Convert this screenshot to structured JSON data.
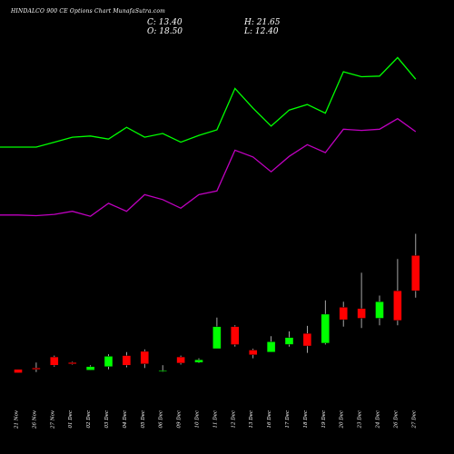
{
  "header": {
    "title": "HINDALCO 900 CE Options  Chart MunafaSutra.com",
    "close_label": "C: 13.40",
    "open_label": "O: 18.50",
    "high_label": "H: 21.65",
    "low_label": "L: 12.40"
  },
  "colors": {
    "background": "#000000",
    "up": "#00ff00",
    "down": "#ff0000",
    "upper_line": "#00ff00",
    "lower_line": "#c000c0",
    "text": "#ffffff"
  },
  "chart_data": {
    "type": "candlestick",
    "categories": [
      "21 Nov",
      "26 Nov",
      "27 Nov",
      "01 Dec",
      "02 Dec",
      "03 Dec",
      "04 Dec",
      "05 Dec",
      "06 Dec",
      "09 Dec",
      "10 Dec",
      "11 Dec",
      "12 Dec",
      "13 Dec",
      "16 Dec",
      "17 Dec",
      "18 Dec",
      "19 Dec",
      "20 Dec",
      "23 Dec",
      "24 Dec",
      "26 Dec",
      "27 Dec"
    ],
    "candles": [
      {
        "o": 2.0,
        "h": 2.0,
        "c": 1.5,
        "l": 1.5
      },
      {
        "o": 2.2,
        "h": 3.0,
        "c": 2.0,
        "l": 1.6
      },
      {
        "o": 3.8,
        "h": 4.0,
        "c": 2.6,
        "l": 2.4
      },
      {
        "o": 3.0,
        "h": 3.1,
        "c": 2.8,
        "l": 2.7
      },
      {
        "o": 1.9,
        "h": 2.6,
        "c": 2.4,
        "l": 1.9
      },
      {
        "o": 2.4,
        "h": 4.2,
        "c": 3.9,
        "l": 2.0
      },
      {
        "o": 4.0,
        "h": 4.5,
        "c": 2.6,
        "l": 2.3
      },
      {
        "o": 4.6,
        "h": 4.9,
        "c": 2.8,
        "l": 2.2
      },
      {
        "o": 1.8,
        "h": 2.6,
        "c": 1.8,
        "l": 1.6
      },
      {
        "o": 3.8,
        "h": 4.0,
        "c": 2.9,
        "l": 2.7
      },
      {
        "o": 3.0,
        "h": 3.6,
        "c": 3.4,
        "l": 2.9
      },
      {
        "o": 5.0,
        "h": 9.5,
        "c": 8.2,
        "l": 5.0
      },
      {
        "o": 8.2,
        "h": 8.4,
        "c": 5.6,
        "l": 5.3
      },
      {
        "o": 4.8,
        "h": 5.0,
        "c": 4.1,
        "l": 3.6
      },
      {
        "o": 4.5,
        "h": 6.8,
        "c": 6.0,
        "l": 4.5
      },
      {
        "o": 5.6,
        "h": 7.5,
        "c": 6.6,
        "l": 5.3
      },
      {
        "o": 7.2,
        "h": 8.3,
        "c": 5.4,
        "l": 4.4
      },
      {
        "o": 5.8,
        "h": 12.0,
        "c": 10.0,
        "l": 5.6
      },
      {
        "o": 11.0,
        "h": 11.8,
        "c": 9.2,
        "l": 8.2
      },
      {
        "o": 10.8,
        "h": 16.0,
        "c": 9.4,
        "l": 8.0
      },
      {
        "o": 9.4,
        "h": 12.7,
        "c": 11.8,
        "l": 8.4
      },
      {
        "o": 13.4,
        "h": 18.0,
        "c": 9.1,
        "l": 8.4
      },
      {
        "o": 18.5,
        "h": 21.65,
        "c": 13.4,
        "l": 12.4
      }
    ],
    "upper_line": [
      35.0,
      35.0,
      35.8,
      36.6,
      36.8,
      36.3,
      38.2,
      36.6,
      37.2,
      35.8,
      36.9,
      37.8,
      44.5,
      41.3,
      38.4,
      41.0,
      41.9,
      40.5,
      47.2,
      46.4,
      46.5,
      49.5,
      46.0
    ],
    "lower_line": [
      24.0,
      23.9,
      24.1,
      24.6,
      23.8,
      25.9,
      24.6,
      27.3,
      26.5,
      25.1,
      27.3,
      27.9,
      34.5,
      33.4,
      31.0,
      33.5,
      35.4,
      34.1,
      37.9,
      37.7,
      37.9,
      39.6,
      37.5
    ],
    "x_tick_labels": [
      "21 Nov",
      "26 Nov",
      "27 Nov",
      "01 Dec",
      "02 Dec",
      "03 Dec",
      "04 Dec",
      "05 Dec",
      "06 Dec",
      "09 Dec",
      "10 Dec",
      "11 Dec",
      "12 Dec",
      "13 Dec",
      "16 Dec",
      "17 Dec",
      "18 Dec",
      "19 Dec",
      "20 Dec",
      "23 Dec",
      "24 Dec",
      "26 Dec",
      "27 Dec"
    ],
    "grid": false,
    "legend": "none"
  }
}
